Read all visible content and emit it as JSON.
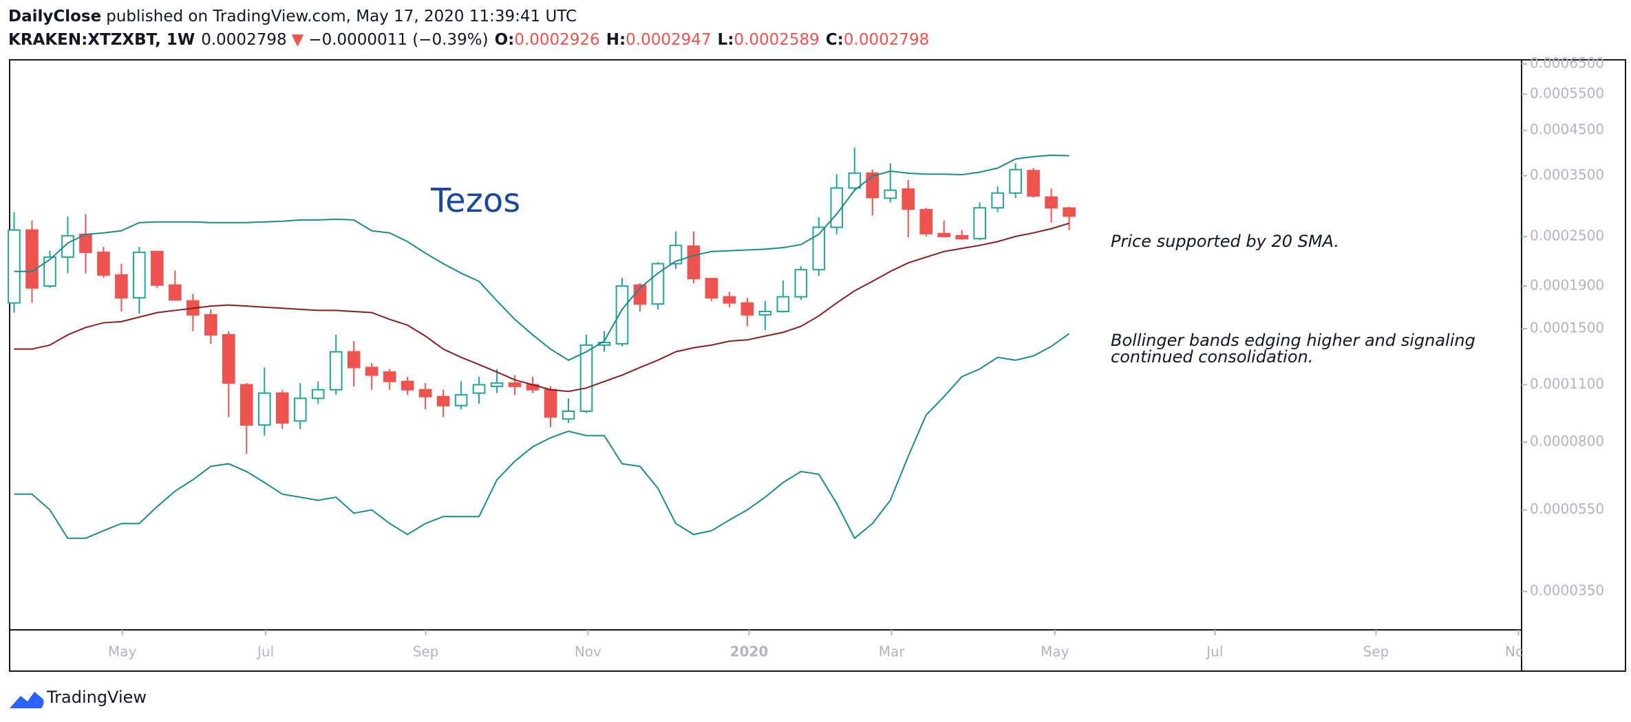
{
  "header": {
    "author": "DailyClose",
    "published": "published on TradingView.com, May 17, 2020 11:39:41 UTC",
    "symbol": "KRAKEN:XTZXBT, 1W",
    "direction": "▼",
    "change": "−0.0000011 (−0.39%)",
    "ohlc_labels": [
      "O:",
      "H:",
      "L:",
      "C:"
    ]
  },
  "chart_data": {
    "type": "candlestick",
    "title": "Tezos",
    "annotations": [
      [
        "Price supported by 20 SMA."
      ],
      [
        "Bollinger bands edging higher and signaling",
        "continued consolidation."
      ]
    ],
    "log_scale": true,
    "grid": false,
    "up_color": "#22a39b",
    "down_color": "#ef5350",
    "xlim": [
      -0.25,
      84.3
    ],
    "xticks": [
      {
        "value": 6.05,
        "label": "May"
      },
      {
        "value": 14.07,
        "label": "Jul"
      },
      {
        "value": 23.02,
        "label": "Sep"
      },
      {
        "value": 32.09,
        "label": "Nov"
      },
      {
        "value": 41.1,
        "label": "2020"
      },
      {
        "value": 49.07,
        "label": "Mar"
      },
      {
        "value": 58.2,
        "label": "May"
      },
      {
        "value": 67.15,
        "label": "Jul"
      },
      {
        "value": 76.16,
        "label": "Sep"
      },
      {
        "value": 84.13,
        "label": "Nov"
      }
    ],
    "ylim": [
      2.83e-05,
      0.000665
    ],
    "yticks": [
      {
        "value": 0.00065,
        "label": "0.0006500"
      },
      {
        "value": 0.00055,
        "label": "0.0005500"
      },
      {
        "value": 0.00045,
        "label": "0.0004500"
      },
      {
        "value": 0.00035,
        "label": "0.0003500"
      },
      {
        "value": 0.00025,
        "label": "0.0002500"
      },
      {
        "value": 0.00019,
        "label": "0.0001900"
      },
      {
        "value": 0.00015,
        "label": "0.0001500"
      },
      {
        "value": 0.00011,
        "label": "0.0001100"
      },
      {
        "value": 8e-05,
        "label": "0.0000800"
      },
      {
        "value": 5.5e-05,
        "label": "0.0000550"
      },
      {
        "value": 3.5e-05,
        "label": "0.0000350"
      }
    ],
    "x": [
      0,
      1,
      2,
      3,
      4,
      5,
      6,
      7,
      8,
      9,
      10,
      11,
      12,
      13,
      14,
      15,
      16,
      17,
      18,
      19,
      20,
      21,
      22,
      23,
      24,
      25,
      26,
      27,
      28,
      29,
      30,
      31,
      32,
      33,
      34,
      35,
      36,
      37,
      38,
      39,
      40,
      41,
      42,
      43,
      44,
      45,
      46,
      47,
      48,
      49,
      50,
      51,
      52,
      53,
      54,
      55,
      56,
      57,
      58,
      59
    ],
    "open": [
      0.000173,
      0.000259,
      0.00019,
      0.000223,
      0.000253,
      0.000229,
      0.000202,
      0.000178,
      0.00023,
      0.000191,
      0.000175,
      0.000162,
      0.000145,
      0.00011,
      8.8e-05,
      0.000105,
      9e-05,
      0.000102,
      0.000107,
      0.000132,
      0.000121,
      0.000118,
      0.000112,
      0.000107,
      0.000103,
      9.8e-05,
      0.000105,
      0.000109,
      0.000111,
      0.00011,
      0.000107,
      9.1e-05,
      9.5e-05,
      0.000137,
      0.000138,
      0.000191,
      0.000172,
      0.000215,
      0.000237,
      0.000198,
      0.000179,
      0.000173,
      0.000162,
      0.000165,
      0.000179,
      0.000208,
      0.000263,
      0.000327,
      0.000355,
      0.000309,
      0.000325,
      0.00029,
      0.000254,
      0.000251,
      0.000247,
      0.000293,
      0.000318,
      0.00036,
      0.000311,
      0.0002926
    ],
    "high": [
      0.000286,
      0.000273,
      0.000231,
      0.000279,
      0.000283,
      0.000236,
      0.000215,
      0.000236,
      0.000231,
      0.000207,
      0.000182,
      0.000167,
      0.000148,
      0.000111,
      0.000121,
      0.000107,
      0.000111,
      0.000112,
      0.000145,
      0.00014,
      0.000124,
      0.00012,
      0.000115,
      0.000111,
      0.000107,
      0.000112,
      0.000115,
      0.00012,
      0.000116,
      0.000115,
      0.000109,
      0.000102,
      0.000145,
      0.000148,
      0.000199,
      0.000193,
      0.000217,
      0.000257,
      0.000257,
      0.000199,
      0.000184,
      0.000178,
      0.000175,
      0.000196,
      0.000212,
      0.000278,
      0.000353,
      0.000409,
      0.000362,
      0.000375,
      0.000342,
      0.000293,
      0.000273,
      0.000259,
      0.000302,
      0.00033,
      0.000375,
      0.000365,
      0.000326,
      0.0002947
    ],
    "low": [
      0.000164,
      0.000173,
      0.000188,
      0.000204,
      0.000204,
      0.000199,
      0.000165,
      0.000163,
      0.000188,
      0.000175,
      0.000148,
      0.000138,
      9.2e-05,
      7.5e-05,
      8.3e-05,
      8.6e-05,
      8.6e-05,
      9.9e-05,
      0.000104,
      0.000109,
      0.000107,
      0.000107,
      0.000104,
      9.6e-05,
      9.2e-05,
      9.6e-05,
      9.9e-05,
      0.000105,
      0.000104,
      0.000105,
      8.7e-05,
      8.9e-05,
      9.4e-05,
      0.000132,
      0.000136,
      0.000165,
      0.000167,
      0.000209,
      0.000193,
      0.000175,
      0.000169,
      0.000152,
      0.000149,
      0.000164,
      0.000176,
      0.000201,
      0.000253,
      0.000323,
      0.000281,
      0.000302,
      0.000249,
      0.00025,
      0.000249,
      0.000245,
      0.000245,
      0.000286,
      0.000309,
      0.00031,
      0.00027,
      0.0002589
    ],
    "close": [
      0.000259,
      0.000188,
      0.000223,
      0.000251,
      0.000229,
      0.000202,
      0.000178,
      0.000229,
      0.000191,
      0.000176,
      0.000162,
      0.000145,
      0.000111,
      8.8e-05,
      0.000105,
      8.9e-05,
      0.000102,
      0.000107,
      0.000132,
      0.000121,
      0.000116,
      0.000112,
      0.000107,
      0.000103,
      9.8e-05,
      0.000104,
      0.00011,
      0.000111,
      0.000109,
      0.000107,
      9.2e-05,
      9.5e-05,
      0.000137,
      0.000139,
      0.00019,
      0.000172,
      0.000215,
      0.000238,
      0.000198,
      0.000178,
      0.000173,
      0.000162,
      0.000165,
      0.000179,
      0.000208,
      0.000263,
      0.000327,
      0.000355,
      0.00031,
      0.000323,
      0.000291,
      0.000254,
      0.00025,
      0.000247,
      0.000293,
      0.000318,
      0.000362,
      0.000313,
      0.000293,
      0.0002798
    ],
    "overlays": [
      {
        "color": "#1b8a8a",
        "values": [
          0.000206,
          0.000206,
          0.00022,
          0.000241,
          0.000253,
          0.000255,
          0.000258,
          0.00027,
          0.000271,
          0.000271,
          0.000271,
          0.00027,
          0.00027,
          0.00027,
          0.000271,
          0.000272,
          0.000274,
          0.000274,
          0.000275,
          0.000274,
          0.000258,
          0.000255,
          0.000243,
          0.000228,
          0.000215,
          0.000204,
          0.000195,
          0.000175,
          0.000158,
          0.000145,
          0.000134,
          0.000126,
          0.000132,
          0.00014,
          0.000167,
          0.000188,
          0.000204,
          0.000218,
          0.000225,
          0.00023,
          0.000231,
          0.000232,
          0.000233,
          0.000235,
          0.000239,
          0.000253,
          0.000283,
          0.000323,
          0.000349,
          0.000359,
          0.000355,
          0.000353,
          0.000353,
          0.000352,
          0.000357,
          0.000365,
          0.000384,
          0.000389,
          0.000392,
          0.000391
        ]
      },
      {
        "color": "#8b1c1c",
        "values": [
          0.000134,
          0.000134,
          0.000137,
          0.000145,
          0.000151,
          0.000155,
          0.000156,
          0.00016,
          0.000164,
          0.000166,
          0.000168,
          0.00017,
          0.000171,
          0.00017,
          0.000169,
          0.000168,
          0.000167,
          0.000166,
          0.000166,
          0.000165,
          0.000164,
          0.000158,
          0.000153,
          0.000144,
          0.000134,
          0.000128,
          0.000123,
          0.000118,
          0.000113,
          0.00011,
          0.000107,
          0.000106,
          0.000108,
          0.000112,
          0.000116,
          0.000121,
          0.000126,
          0.000132,
          0.000135,
          0.000137,
          0.00014,
          0.000141,
          0.000144,
          0.000147,
          0.000152,
          0.000161,
          0.000173,
          0.000185,
          0.000195,
          0.000206,
          0.000216,
          0.000223,
          0.00023,
          0.000234,
          0.000238,
          0.000243,
          0.00025,
          0.000255,
          0.000261,
          0.000269
        ]
      },
      {
        "color": "#1b8a8a",
        "values": [
          6e-05,
          6e-05,
          5.5e-05,
          4.7e-05,
          4.7e-05,
          4.9e-05,
          5.1e-05,
          5.1e-05,
          5.6e-05,
          6.1e-05,
          6.5e-05,
          7e-05,
          7.1e-05,
          6.8e-05,
          6.4e-05,
          6e-05,
          5.9e-05,
          5.8e-05,
          5.9e-05,
          5.4e-05,
          5.5e-05,
          5.1e-05,
          4.8e-05,
          5.1e-05,
          5.3e-05,
          5.3e-05,
          5.3e-05,
          6.5e-05,
          7.2e-05,
          7.8e-05,
          8.2e-05,
          8.5e-05,
          8.3e-05,
          8.3e-05,
          7.1e-05,
          7e-05,
          6.2e-05,
          5.1e-05,
          4.8e-05,
          4.9e-05,
          5.2e-05,
          5.5e-05,
          5.9e-05,
          6.4e-05,
          6.8e-05,
          6.7e-05,
          5.7e-05,
          4.7e-05,
          5.1e-05,
          5.8e-05,
          7.4e-05,
          9.3e-05,
          0.000103,
          0.000115,
          0.00012,
          0.000128,
          0.000126,
          0.000129,
          0.000136,
          0.000146
        ]
      }
    ]
  }
}
